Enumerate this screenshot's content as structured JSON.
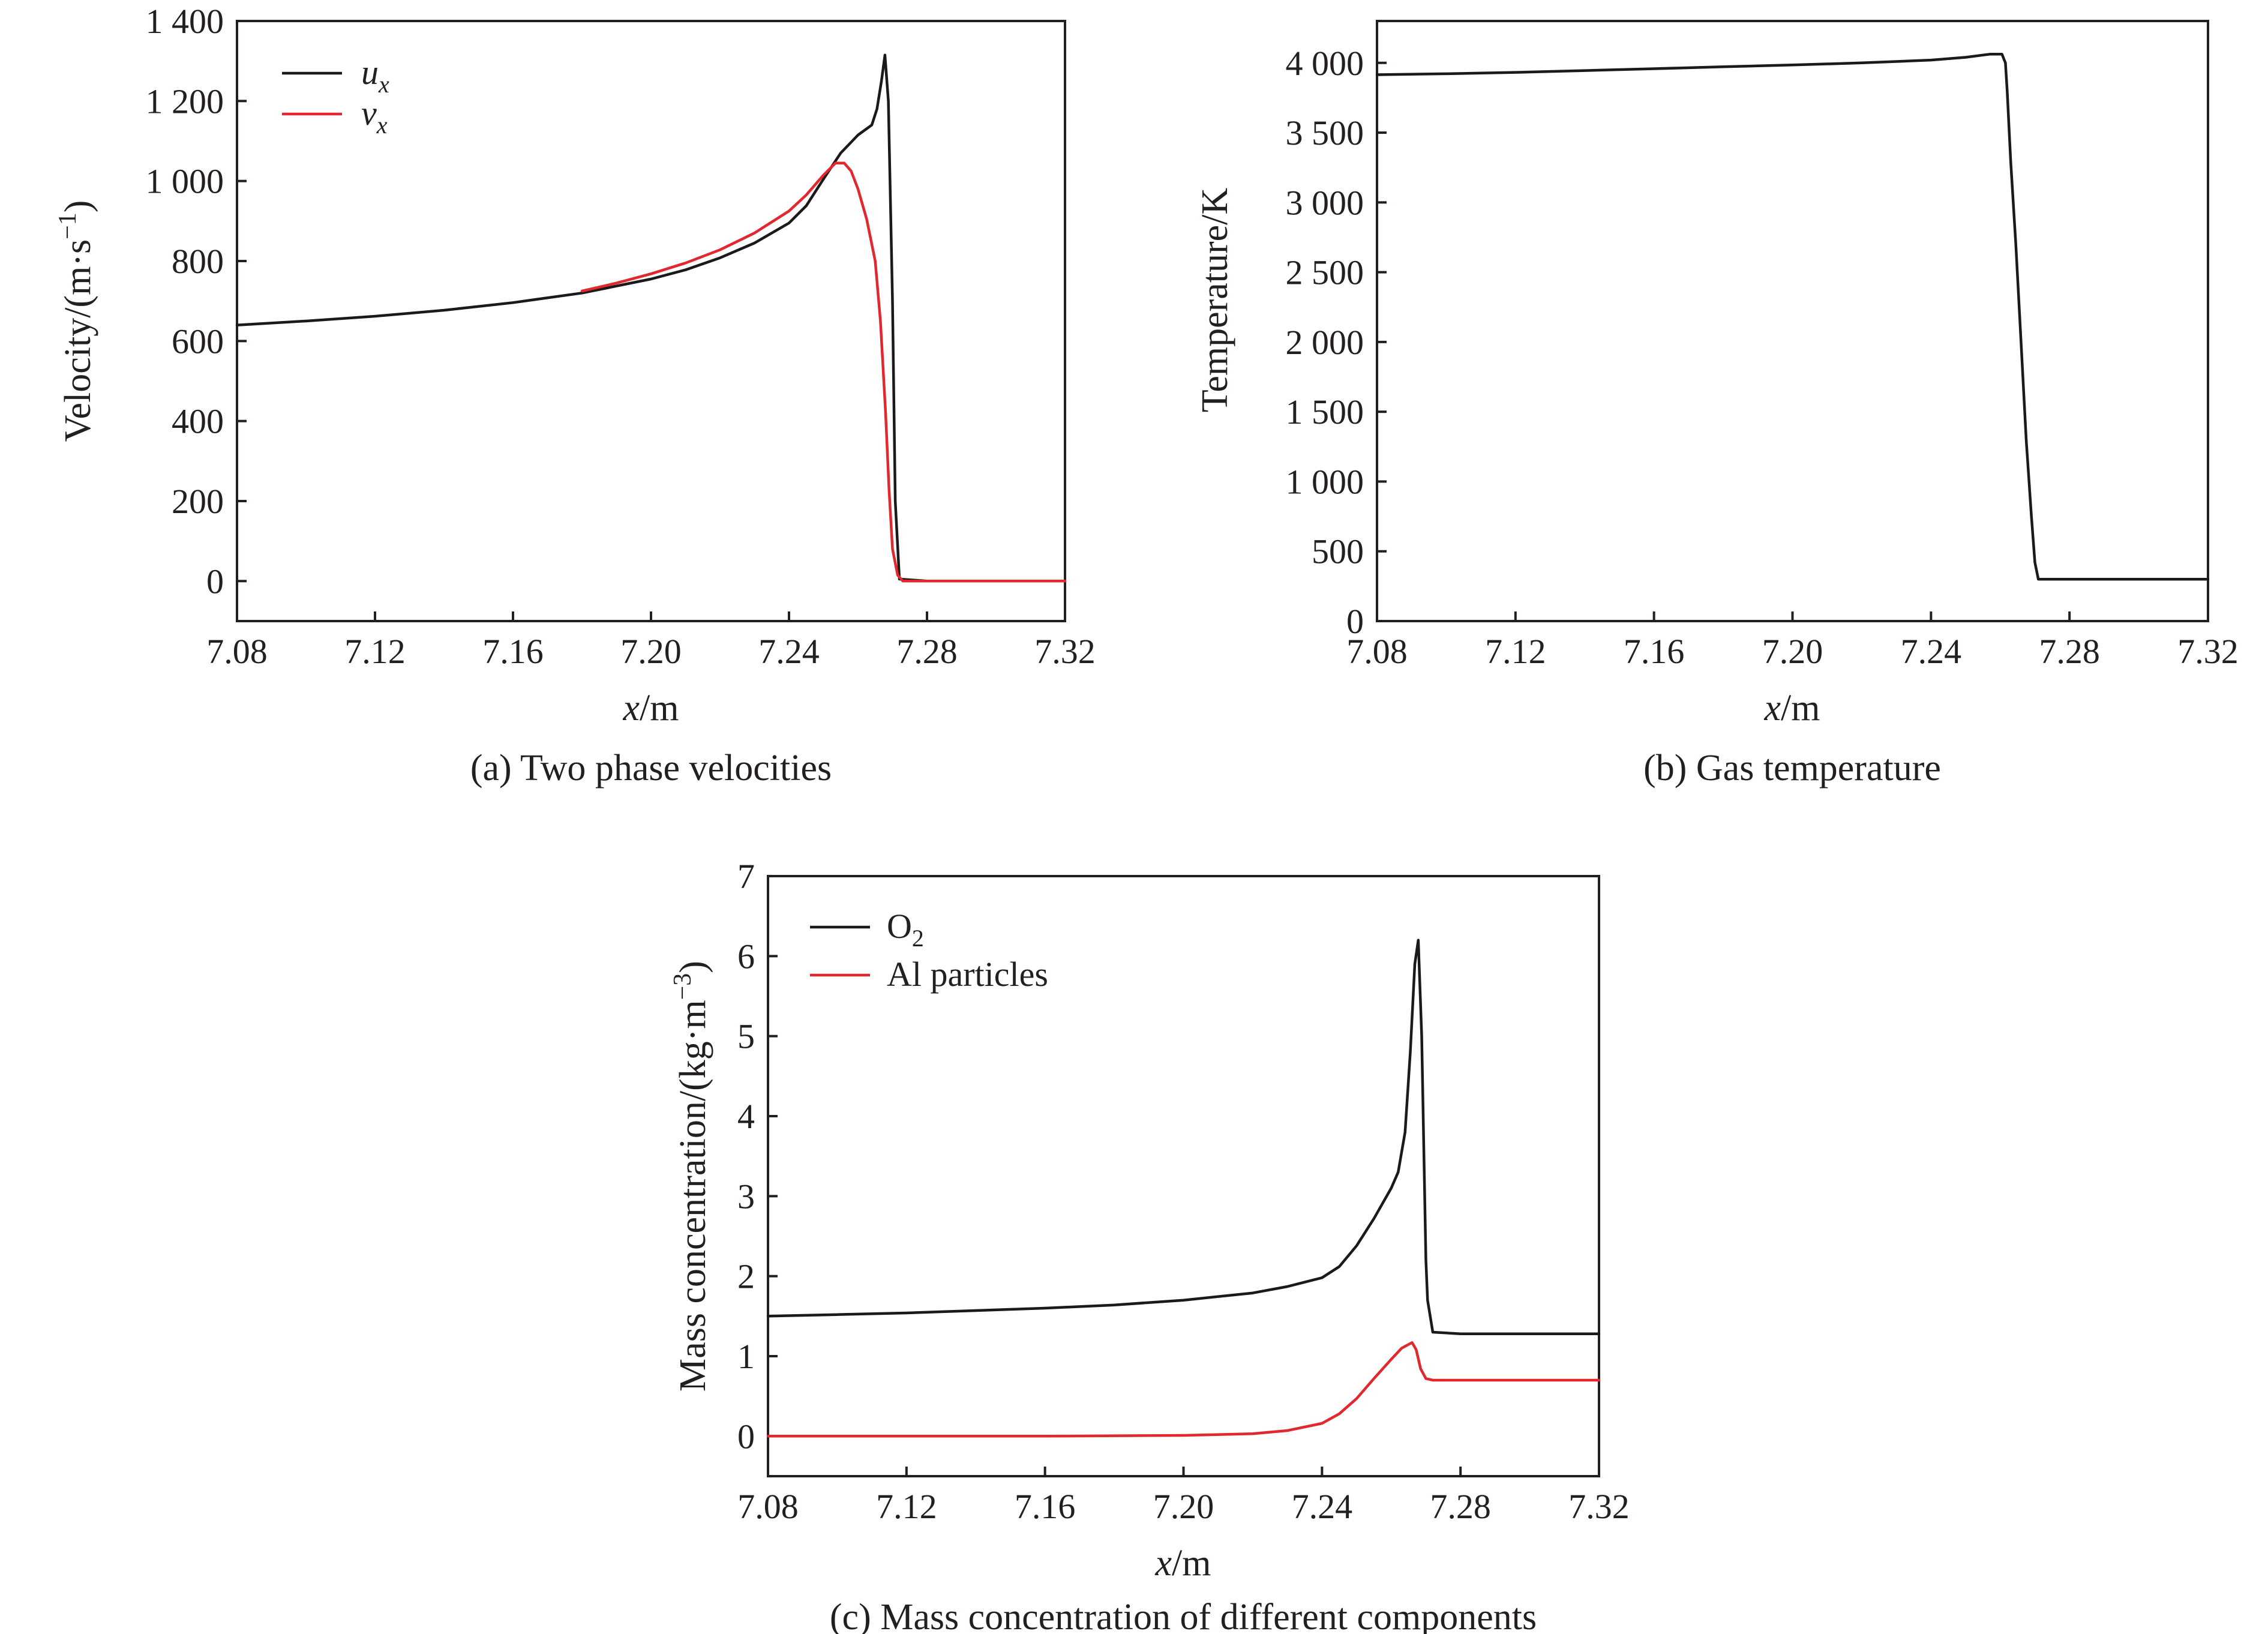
{
  "colors": {
    "black_series": "#1a1a1a",
    "red_series": "#e0282e",
    "text": "#231f20"
  },
  "chart_data": [
    {
      "panel": "a",
      "type": "line",
      "caption": "(a) Two phase velocities",
      "xlabel_italic": "x",
      "xlabel_unit": "/m",
      "ylabel": "Velocity/(m·s",
      "ylabel_sup": "−1",
      "ylabel_close": ")",
      "xlim": [
        7.08,
        7.32
      ],
      "ylim": [
        -100,
        1400
      ],
      "xticks": [
        7.08,
        7.12,
        7.16,
        7.2,
        7.24,
        7.28,
        7.32
      ],
      "xtick_labels": [
        "7.08",
        "7.12",
        "7.16",
        "7.20",
        "7.24",
        "7.28",
        "7.32"
      ],
      "yticks": [
        0,
        200,
        400,
        600,
        800,
        1000,
        1200,
        1400
      ],
      "ytick_labels": [
        "0",
        "200",
        "400",
        "600",
        "800",
        "1 000",
        "1 200",
        "1 400"
      ],
      "legend_position": "top-left",
      "series": [
        {
          "name_main": "u",
          "name_sub": "x",
          "color": "#1a1a1a",
          "x": [
            7.08,
            7.1,
            7.12,
            7.14,
            7.16,
            7.18,
            7.2,
            7.21,
            7.22,
            7.23,
            7.24,
            7.245,
            7.25,
            7.255,
            7.26,
            7.264,
            7.2655,
            7.2668,
            7.2678,
            7.2688,
            7.27,
            7.2708,
            7.272,
            7.28,
            7.29,
            7.3,
            7.31,
            7.32
          ],
          "y": [
            640,
            650,
            662,
            677,
            696,
            720,
            755,
            778,
            808,
            845,
            895,
            938,
            1005,
            1070,
            1115,
            1140,
            1180,
            1250,
            1315,
            1200,
            700,
            200,
            5,
            0,
            0,
            0,
            0,
            0
          ]
        },
        {
          "name_main": "v",
          "name_sub": "x",
          "color": "#e0282e",
          "x": [
            7.18,
            7.19,
            7.2,
            7.21,
            7.22,
            7.23,
            7.24,
            7.245,
            7.25,
            7.2535,
            7.256,
            7.258,
            7.26,
            7.2625,
            7.265,
            7.2665,
            7.268,
            7.269,
            7.27,
            7.2715,
            7.273,
            7.28,
            7.29,
            7.3,
            7.31,
            7.32
          ],
          "y": [
            725,
            745,
            768,
            795,
            828,
            870,
            925,
            965,
            1015,
            1045,
            1045,
            1025,
            980,
            905,
            800,
            650,
            420,
            230,
            80,
            15,
            0,
            0,
            0,
            0,
            0,
            0
          ]
        }
      ]
    },
    {
      "panel": "b",
      "type": "line",
      "caption": "(b) Gas temperature",
      "xlabel_italic": "x",
      "xlabel_unit": "/m",
      "ylabel": "Temperature/K",
      "xlim": [
        7.08,
        7.32
      ],
      "ylim": [
        0,
        4300
      ],
      "xticks": [
        7.08,
        7.12,
        7.16,
        7.2,
        7.24,
        7.28,
        7.32
      ],
      "xtick_labels": [
        "7.08",
        "7.12",
        "7.16",
        "7.20",
        "7.24",
        "7.28",
        "7.32"
      ],
      "yticks": [
        0,
        500,
        1000,
        1500,
        2000,
        2500,
        3000,
        3500,
        4000
      ],
      "ytick_labels": [
        "0",
        "500",
        "1 000",
        "1 500",
        "2 000",
        "2 500",
        "3 000",
        "3 500",
        "4 000"
      ],
      "series": [
        {
          "color": "#1a1a1a",
          "x": [
            7.08,
            7.1,
            7.12,
            7.14,
            7.16,
            7.18,
            7.2,
            7.22,
            7.24,
            7.25,
            7.257,
            7.2605,
            7.2615,
            7.262,
            7.263,
            7.2645,
            7.266,
            7.2675,
            7.269,
            7.27,
            7.271,
            7.28,
            7.29,
            7.3,
            7.31,
            7.32
          ],
          "y": [
            3915,
            3922,
            3932,
            3945,
            3958,
            3972,
            3985,
            4000,
            4020,
            4040,
            4062,
            4062,
            4000,
            3800,
            3300,
            2700,
            2000,
            1300,
            750,
            420,
            300,
            300,
            300,
            300,
            300,
            300
          ]
        }
      ]
    },
    {
      "panel": "c",
      "type": "line",
      "caption": "(c) Mass concentration of different components",
      "xlabel_italic": "x",
      "xlabel_unit": "/m",
      "ylabel": "Mass concentration/(kg·m",
      "ylabel_sup": "−3",
      "ylabel_close": ")",
      "xlim": [
        7.08,
        7.32
      ],
      "ylim": [
        -0.5,
        7
      ],
      "xticks": [
        7.08,
        7.12,
        7.16,
        7.2,
        7.24,
        7.28,
        7.32
      ],
      "xtick_labels": [
        "7.08",
        "7.12",
        "7.16",
        "7.20",
        "7.24",
        "7.28",
        "7.32"
      ],
      "yticks": [
        0,
        1,
        2,
        3,
        4,
        5,
        6,
        7
      ],
      "ytick_labels": [
        "0",
        "1",
        "2",
        "3",
        "4",
        "5",
        "6",
        "7"
      ],
      "legend_position": "top-left",
      "series": [
        {
          "name_main": "O",
          "name_sub": "2",
          "color": "#1a1a1a",
          "x": [
            7.08,
            7.1,
            7.12,
            7.14,
            7.16,
            7.18,
            7.2,
            7.22,
            7.23,
            7.24,
            7.245,
            7.25,
            7.255,
            7.26,
            7.262,
            7.264,
            7.2655,
            7.2668,
            7.2678,
            7.2688,
            7.27,
            7.2705,
            7.272,
            7.28,
            7.3,
            7.32
          ],
          "y": [
            1.5,
            1.52,
            1.54,
            1.57,
            1.6,
            1.64,
            1.7,
            1.79,
            1.87,
            1.98,
            2.12,
            2.38,
            2.72,
            3.1,
            3.3,
            3.8,
            4.8,
            5.9,
            6.2,
            5.0,
            2.2,
            1.7,
            1.3,
            1.28,
            1.28,
            1.28
          ]
        },
        {
          "name_main": "Al particles",
          "color": "#e0282e",
          "x": [
            7.08,
            7.12,
            7.16,
            7.2,
            7.22,
            7.23,
            7.24,
            7.245,
            7.25,
            7.255,
            7.26,
            7.263,
            7.266,
            7.2672,
            7.2685,
            7.27,
            7.272,
            7.28,
            7.3,
            7.32
          ],
          "y": [
            0.0,
            0.0,
            0.0,
            0.01,
            0.03,
            0.07,
            0.16,
            0.28,
            0.47,
            0.72,
            0.96,
            1.1,
            1.17,
            1.08,
            0.84,
            0.72,
            0.7,
            0.7,
            0.7,
            0.7
          ]
        }
      ]
    }
  ]
}
